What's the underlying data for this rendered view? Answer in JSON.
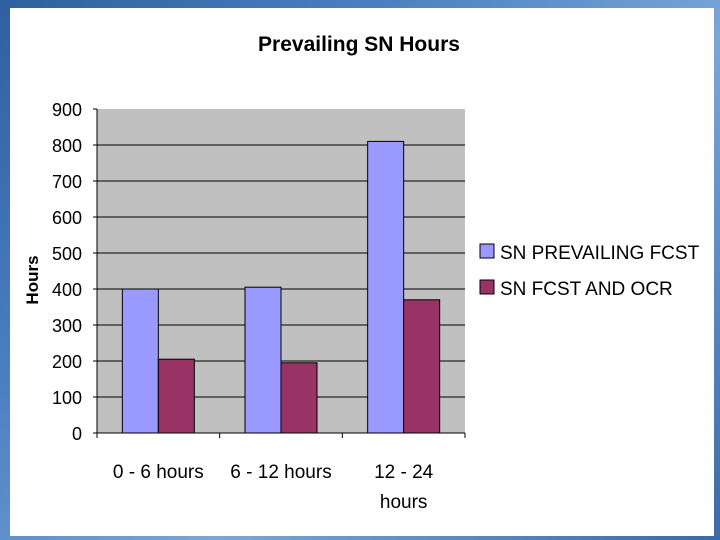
{
  "chart_data": {
    "type": "bar",
    "title": "Prevailing SN Hours",
    "ylabel": "Hours",
    "xlabel": "",
    "categories": [
      [
        "0 - 6 hours"
      ],
      [
        "6 - 12 hours"
      ],
      [
        "12 - 24",
        "hours"
      ]
    ],
    "series": [
      {
        "name": "SN PREVAILING FCST",
        "color": "#9999ff",
        "values": [
          400,
          405,
          810
        ]
      },
      {
        "name": "SN FCST AND OCR",
        "color": "#993366",
        "values": [
          205,
          195,
          370
        ]
      }
    ],
    "ylim": [
      0,
      900
    ],
    "yticks": [
      0,
      100,
      200,
      300,
      400,
      500,
      600,
      700,
      800,
      900
    ],
    "plot_background": "#c0c0c0",
    "grid": true,
    "legend_position": "right"
  }
}
